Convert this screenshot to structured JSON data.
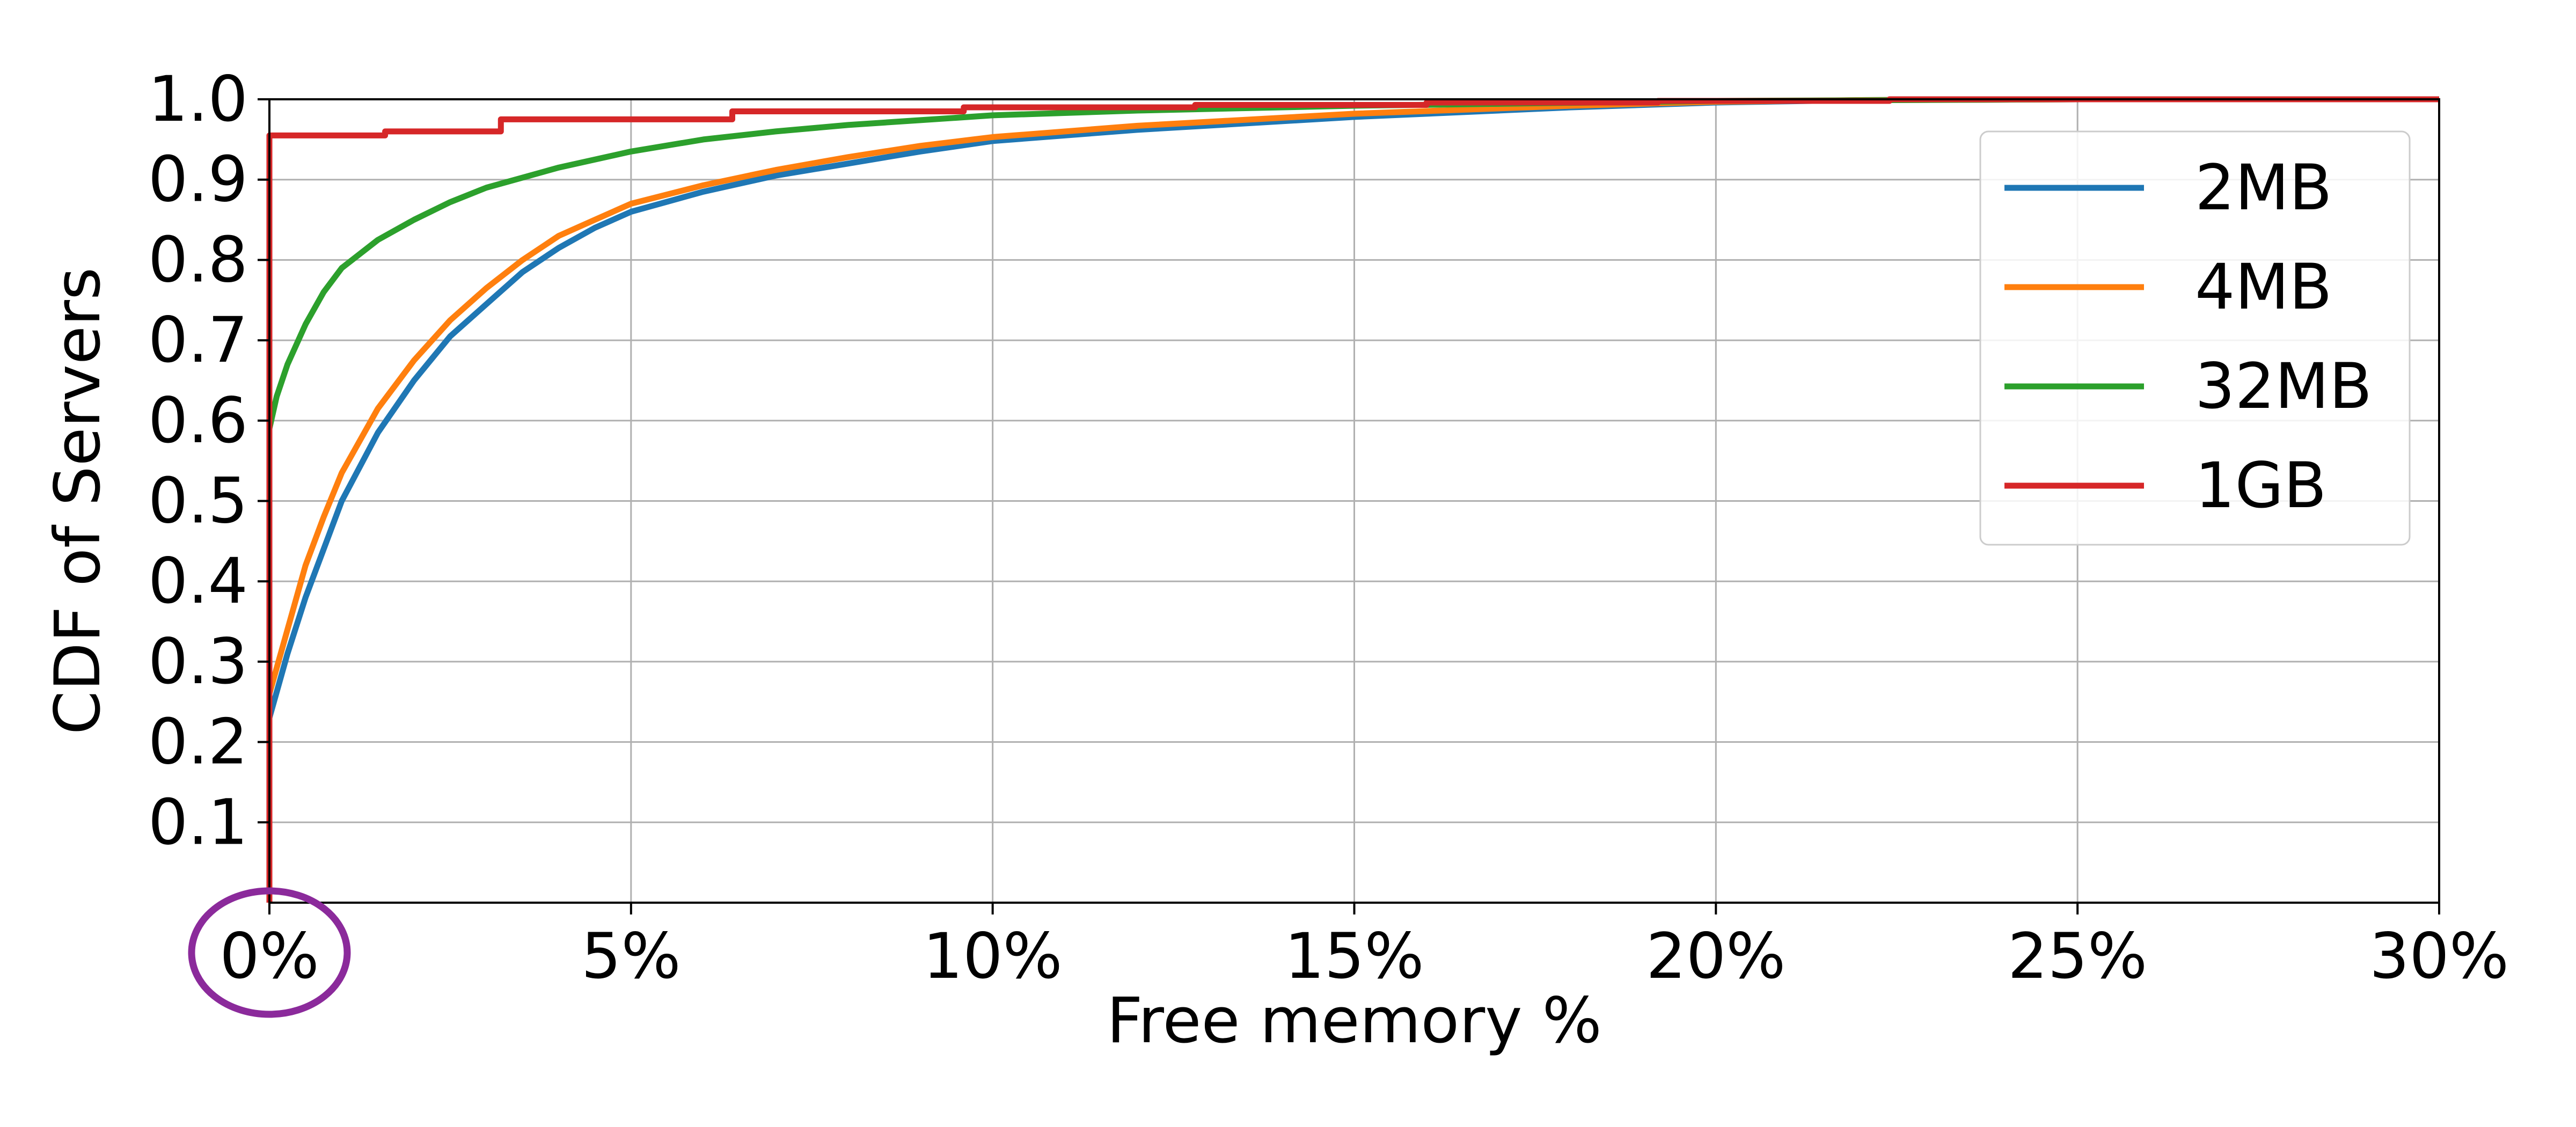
{
  "chart_data": {
    "type": "line",
    "title": "",
    "xlabel": "Free memory %",
    "ylabel": "CDF of Servers",
    "xlim": [
      0,
      30
    ],
    "ylim": [
      0,
      1.0
    ],
    "grid": true,
    "legend_position": "top-right",
    "x_ticks": [
      {
        "value": 0,
        "label": "0%"
      },
      {
        "value": 5,
        "label": "5%"
      },
      {
        "value": 10,
        "label": "10%"
      },
      {
        "value": 15,
        "label": "15%"
      },
      {
        "value": 20,
        "label": "20%"
      },
      {
        "value": 25,
        "label": "25%"
      },
      {
        "value": 30,
        "label": "30%"
      }
    ],
    "y_ticks": [
      {
        "value": 0.1,
        "label": "0.1"
      },
      {
        "value": 0.2,
        "label": "0.2"
      },
      {
        "value": 0.3,
        "label": "0.3"
      },
      {
        "value": 0.4,
        "label": "0.4"
      },
      {
        "value": 0.5,
        "label": "0.5"
      },
      {
        "value": 0.6,
        "label": "0.6"
      },
      {
        "value": 0.7,
        "label": "0.7"
      },
      {
        "value": 0.8,
        "label": "0.8"
      },
      {
        "value": 0.9,
        "label": "0.9"
      },
      {
        "value": 1.0,
        "label": "1.0"
      }
    ],
    "highlight": {
      "shape": "circle",
      "target_x": 0,
      "color": "#8b2a9b"
    },
    "series": [
      {
        "name": "2MB",
        "color": "#1f77b4",
        "step": false,
        "points": [
          [
            0,
            0
          ],
          [
            0,
            0.23
          ],
          [
            0.25,
            0.31
          ],
          [
            0.5,
            0.38
          ],
          [
            0.75,
            0.44
          ],
          [
            1,
            0.5
          ],
          [
            1.5,
            0.585
          ],
          [
            2,
            0.65
          ],
          [
            2.5,
            0.705
          ],
          [
            3,
            0.745
          ],
          [
            3.5,
            0.785
          ],
          [
            4,
            0.815
          ],
          [
            4.5,
            0.84
          ],
          [
            5,
            0.86
          ],
          [
            6,
            0.885
          ],
          [
            7,
            0.905
          ],
          [
            8,
            0.92
          ],
          [
            9,
            0.935
          ],
          [
            10,
            0.948
          ],
          [
            12,
            0.962
          ],
          [
            15,
            0.978
          ],
          [
            18,
            0.99
          ],
          [
            20,
            0.996
          ],
          [
            22,
            0.999
          ],
          [
            25,
            1.0
          ],
          [
            30,
            1.0
          ]
        ]
      },
      {
        "name": "4MB",
        "color": "#ff7f0e",
        "step": false,
        "points": [
          [
            0,
            0
          ],
          [
            0,
            0.26
          ],
          [
            0.25,
            0.34
          ],
          [
            0.5,
            0.42
          ],
          [
            0.75,
            0.48
          ],
          [
            1,
            0.535
          ],
          [
            1.5,
            0.615
          ],
          [
            2,
            0.675
          ],
          [
            2.5,
            0.725
          ],
          [
            3,
            0.765
          ],
          [
            3.5,
            0.8
          ],
          [
            4,
            0.83
          ],
          [
            4.5,
            0.85
          ],
          [
            5,
            0.87
          ],
          [
            6,
            0.893
          ],
          [
            7,
            0.912
          ],
          [
            8,
            0.928
          ],
          [
            9,
            0.942
          ],
          [
            10,
            0.953
          ],
          [
            12,
            0.967
          ],
          [
            15,
            0.982
          ],
          [
            18,
            0.992
          ],
          [
            20,
            0.997
          ],
          [
            22,
            0.999
          ],
          [
            25,
            1.0
          ],
          [
            30,
            1.0
          ]
        ]
      },
      {
        "name": "32MB",
        "color": "#2ca02c",
        "step": false,
        "points": [
          [
            0,
            0
          ],
          [
            0,
            0.59
          ],
          [
            0.1,
            0.63
          ],
          [
            0.25,
            0.67
          ],
          [
            0.5,
            0.72
          ],
          [
            0.75,
            0.76
          ],
          [
            1,
            0.79
          ],
          [
            1.5,
            0.825
          ],
          [
            2,
            0.85
          ],
          [
            2.5,
            0.872
          ],
          [
            3,
            0.89
          ],
          [
            4,
            0.915
          ],
          [
            5,
            0.935
          ],
          [
            6,
            0.95
          ],
          [
            7,
            0.96
          ],
          [
            8,
            0.968
          ],
          [
            9,
            0.974
          ],
          [
            10,
            0.98
          ],
          [
            12,
            0.986
          ],
          [
            15,
            0.992
          ],
          [
            20,
            0.998
          ],
          [
            25,
            1.0
          ],
          [
            30,
            1.0
          ]
        ]
      },
      {
        "name": "1GB",
        "color": "#d62728",
        "step": true,
        "points": [
          [
            0,
            0
          ],
          [
            0,
            0.955
          ],
          [
            1.6,
            0.96
          ],
          [
            3.2,
            0.975
          ],
          [
            6.4,
            0.985
          ],
          [
            9.6,
            0.99
          ],
          [
            12.8,
            0.993
          ],
          [
            16,
            0.996
          ],
          [
            19.2,
            0.998
          ],
          [
            22.4,
            1.0
          ],
          [
            30,
            1.0
          ]
        ]
      }
    ]
  }
}
